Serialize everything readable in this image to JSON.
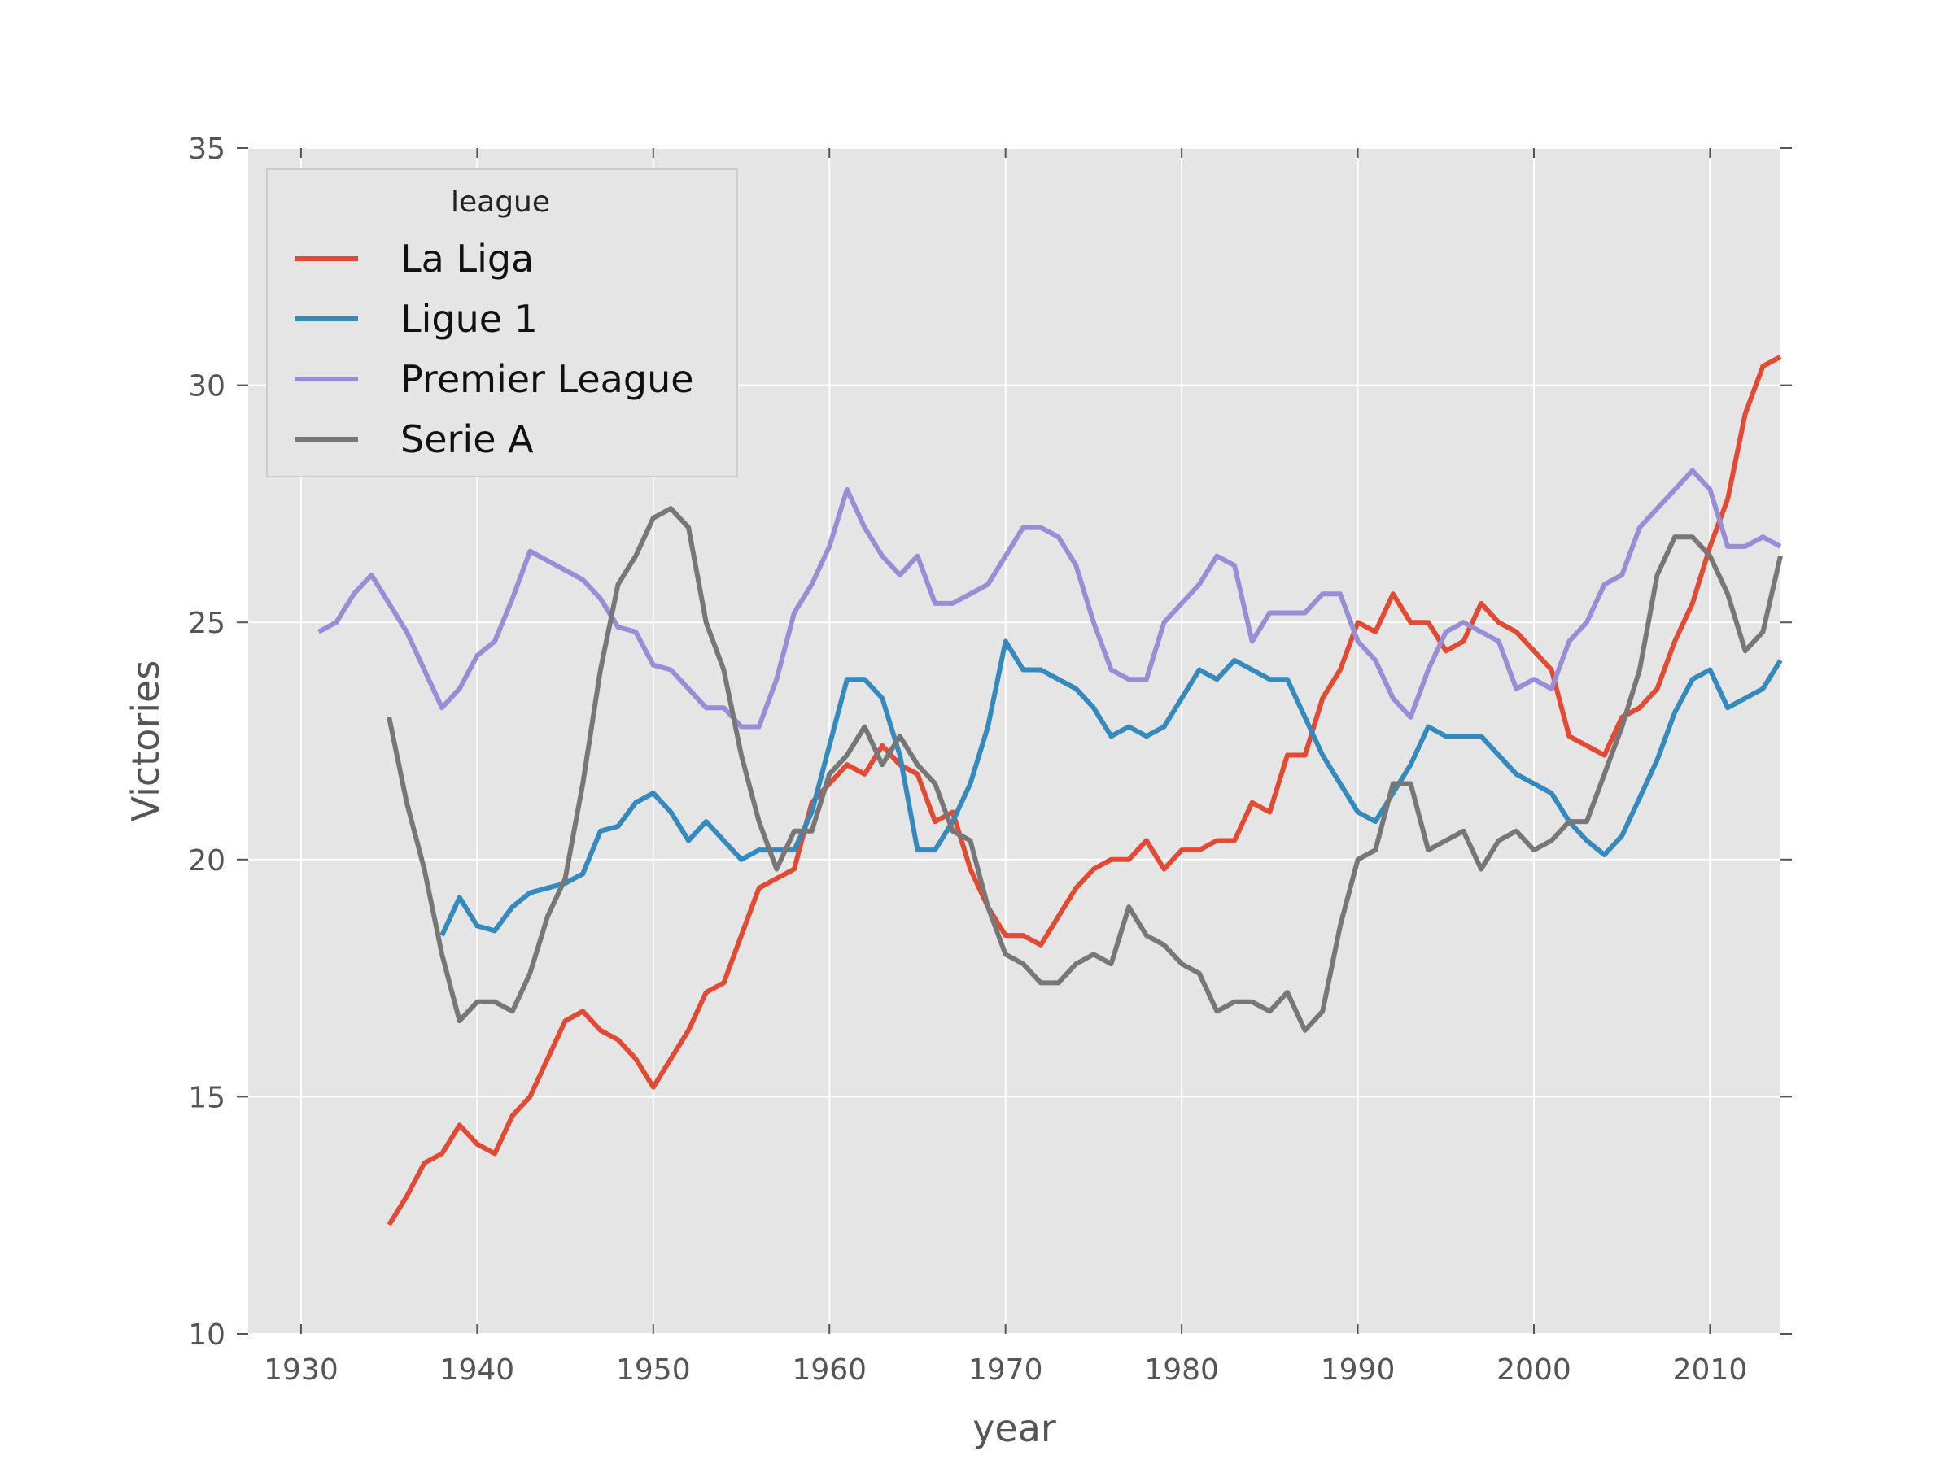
{
  "chart_data": {
    "type": "line",
    "title": "",
    "xlabel": "year",
    "ylabel": "Victories",
    "xlim": [
      1927,
      2014
    ],
    "ylim": [
      10,
      35
    ],
    "xticks": [
      1930,
      1940,
      1950,
      1960,
      1970,
      1980,
      1990,
      2000,
      2010
    ],
    "yticks": [
      10,
      15,
      20,
      25,
      30,
      35
    ],
    "grid": true,
    "legend": {
      "title": "league",
      "placement": "top-left"
    },
    "colors": {
      "background": "#e5e5e5",
      "grid": "#ffffff"
    },
    "series": [
      {
        "name": "La Liga",
        "color": "#e24a33",
        "x": [
          1935,
          1936,
          1937,
          1938,
          1939,
          1940,
          1941,
          1942,
          1943,
          1944,
          1945,
          1946,
          1947,
          1948,
          1949,
          1950,
          1951,
          1952,
          1953,
          1954,
          1955,
          1956,
          1957,
          1958,
          1959,
          1960,
          1961,
          1962,
          1963,
          1964,
          1965,
          1966,
          1967,
          1968,
          1969,
          1970,
          1971,
          1972,
          1973,
          1974,
          1975,
          1976,
          1977,
          1978,
          1979,
          1980,
          1981,
          1982,
          1983,
          1984,
          1985,
          1986,
          1987,
          1988,
          1989,
          1990,
          1991,
          1992,
          1993,
          1994,
          1995,
          1996,
          1997,
          1998,
          1999,
          2000,
          2001,
          2002,
          2003,
          2004,
          2005,
          2006,
          2007,
          2008,
          2009,
          2010,
          2011,
          2012,
          2013,
          2014
        ],
        "values": [
          12.3,
          12.9,
          13.6,
          13.8,
          14.4,
          14.0,
          13.8,
          14.6,
          15.0,
          15.8,
          16.6,
          16.8,
          16.4,
          16.2,
          15.8,
          15.2,
          15.8,
          16.4,
          17.2,
          17.4,
          18.4,
          19.4,
          19.6,
          19.8,
          21.2,
          21.6,
          22.0,
          21.8,
          22.4,
          22.0,
          21.8,
          20.8,
          21.0,
          19.8,
          19.0,
          18.4,
          18.4,
          18.2,
          18.8,
          19.4,
          19.8,
          20.0,
          20.0,
          20.4,
          19.8,
          20.2,
          20.2,
          20.4,
          20.4,
          21.2,
          21.0,
          22.2,
          22.2,
          23.4,
          24.0,
          25.0,
          24.8,
          25.6,
          25.0,
          25.0,
          24.4,
          24.6,
          25.4,
          25.0,
          24.8,
          24.4,
          24.0,
          22.6,
          22.4,
          22.2,
          23.0,
          23.2,
          23.6,
          24.6,
          25.4,
          26.6,
          27.6,
          29.4,
          30.4,
          30.6
        ]
      },
      {
        "name": "Ligue 1",
        "color": "#348abd",
        "x": [
          1938,
          1939,
          1940,
          1941,
          1942,
          1943,
          1944,
          1945,
          1946,
          1947,
          1948,
          1949,
          1950,
          1951,
          1952,
          1953,
          1954,
          1955,
          1956,
          1957,
          1958,
          1959,
          1960,
          1961,
          1962,
          1963,
          1964,
          1965,
          1966,
          1967,
          1968,
          1969,
          1970,
          1971,
          1972,
          1973,
          1974,
          1975,
          1976,
          1977,
          1978,
          1979,
          1980,
          1981,
          1982,
          1983,
          1984,
          1985,
          1986,
          1987,
          1988,
          1989,
          1990,
          1991,
          1992,
          1993,
          1994,
          1995,
          1996,
          1997,
          1998,
          1999,
          2000,
          2001,
          2002,
          2003,
          2004,
          2005,
          2006,
          2007,
          2008,
          2009,
          2010,
          2011,
          2012,
          2013,
          2014
        ],
        "values": [
          18.4,
          19.2,
          18.6,
          18.5,
          19.0,
          19.3,
          19.4,
          19.5,
          19.7,
          20.6,
          20.7,
          21.2,
          21.4,
          21.0,
          20.4,
          20.8,
          20.4,
          20.0,
          20.2,
          20.2,
          20.2,
          21.0,
          22.4,
          23.8,
          23.8,
          23.4,
          22.2,
          20.2,
          20.2,
          20.8,
          21.6,
          22.8,
          24.6,
          24.0,
          24.0,
          23.8,
          23.6,
          23.2,
          22.6,
          22.8,
          22.6,
          22.8,
          23.4,
          24.0,
          23.8,
          24.2,
          24.0,
          23.8,
          23.8,
          23.0,
          22.2,
          21.6,
          21.0,
          20.8,
          21.4,
          22.0,
          22.8,
          22.6,
          22.6,
          22.6,
          22.2,
          21.8,
          21.6,
          21.4,
          20.8,
          20.4,
          20.1,
          20.5,
          21.3,
          22.1,
          23.1,
          23.8,
          24.0,
          23.2,
          23.4,
          23.6,
          24.2
        ]
      },
      {
        "name": "Premier League",
        "color": "#988ed5",
        "x": [
          1931,
          1932,
          1933,
          1934,
          1935,
          1936,
          1937,
          1938,
          1939,
          1940,
          1941,
          1942,
          1943,
          1944,
          1945,
          1946,
          1947,
          1948,
          1949,
          1950,
          1951,
          1952,
          1953,
          1954,
          1955,
          1956,
          1957,
          1958,
          1959,
          1960,
          1961,
          1962,
          1963,
          1964,
          1965,
          1966,
          1967,
          1968,
          1969,
          1970,
          1971,
          1972,
          1973,
          1974,
          1975,
          1976,
          1977,
          1978,
          1979,
          1980,
          1981,
          1982,
          1983,
          1984,
          1985,
          1986,
          1987,
          1988,
          1989,
          1990,
          1991,
          1992,
          1993,
          1994,
          1995,
          1996,
          1997,
          1998,
          1999,
          2000,
          2001,
          2002,
          2003,
          2004,
          2005,
          2006,
          2007,
          2008,
          2009,
          2010,
          2011,
          2012,
          2013,
          2014
        ],
        "values": [
          24.8,
          25.0,
          25.6,
          26.0,
          25.4,
          24.8,
          24.0,
          23.2,
          23.6,
          24.3,
          24.6,
          25.5,
          26.5,
          26.3,
          26.1,
          25.9,
          25.5,
          24.9,
          24.8,
          24.1,
          24.0,
          23.6,
          23.2,
          23.2,
          22.8,
          22.8,
          23.8,
          25.2,
          25.8,
          26.6,
          27.8,
          27.0,
          26.4,
          26.0,
          26.4,
          25.4,
          25.4,
          25.6,
          25.8,
          26.4,
          27.0,
          27.0,
          26.8,
          26.2,
          25.0,
          24.0,
          23.8,
          23.8,
          25.0,
          25.4,
          25.8,
          26.4,
          26.2,
          24.6,
          25.2,
          25.2,
          25.2,
          25.6,
          25.6,
          24.6,
          24.2,
          23.4,
          23.0,
          24.0,
          24.8,
          25.0,
          24.8,
          24.6,
          23.6,
          23.8,
          23.6,
          24.6,
          25.0,
          25.8,
          26.0,
          27.0,
          27.4,
          27.8,
          28.2,
          27.8,
          26.6,
          26.6,
          26.8,
          26.6
        ]
      },
      {
        "name": "Serie A",
        "color": "#777777",
        "x": [
          1935,
          1936,
          1937,
          1938,
          1939,
          1940,
          1941,
          1942,
          1943,
          1944,
          1945,
          1946,
          1947,
          1948,
          1949,
          1950,
          1951,
          1952,
          1953,
          1954,
          1955,
          1956,
          1957,
          1958,
          1959,
          1960,
          1961,
          1962,
          1963,
          1964,
          1965,
          1966,
          1967,
          1968,
          1969,
          1970,
          1971,
          1972,
          1973,
          1974,
          1975,
          1976,
          1977,
          1978,
          1979,
          1980,
          1981,
          1982,
          1983,
          1984,
          1985,
          1986,
          1987,
          1988,
          1989,
          1990,
          1991,
          1992,
          1993,
          1994,
          1995,
          1996,
          1997,
          1998,
          1999,
          2000,
          2001,
          2002,
          2003,
          2004,
          2005,
          2006,
          2007,
          2008,
          2009,
          2010,
          2011,
          2012,
          2013,
          2014
        ],
        "values": [
          23.0,
          21.2,
          19.8,
          18.0,
          16.6,
          17.0,
          17.0,
          16.8,
          17.6,
          18.8,
          19.6,
          21.6,
          24.0,
          25.8,
          26.4,
          27.2,
          27.4,
          27.0,
          25.0,
          24.0,
          22.2,
          20.8,
          19.8,
          20.6,
          20.6,
          21.8,
          22.2,
          22.8,
          22.0,
          22.6,
          22.0,
          21.6,
          20.6,
          20.4,
          19.0,
          18.0,
          17.8,
          17.4,
          17.4,
          17.8,
          18.0,
          17.8,
          19.0,
          18.4,
          18.2,
          17.8,
          17.6,
          16.8,
          17.0,
          17.0,
          16.8,
          17.2,
          16.4,
          16.8,
          18.6,
          20.0,
          20.2,
          21.6,
          21.6,
          20.2,
          20.4,
          20.6,
          19.8,
          20.4,
          20.6,
          20.2,
          20.4,
          20.8,
          20.8,
          21.8,
          22.8,
          24.0,
          26.0,
          26.8,
          26.8,
          26.4,
          25.6,
          24.4,
          24.8,
          26.4
        ]
      }
    ]
  }
}
